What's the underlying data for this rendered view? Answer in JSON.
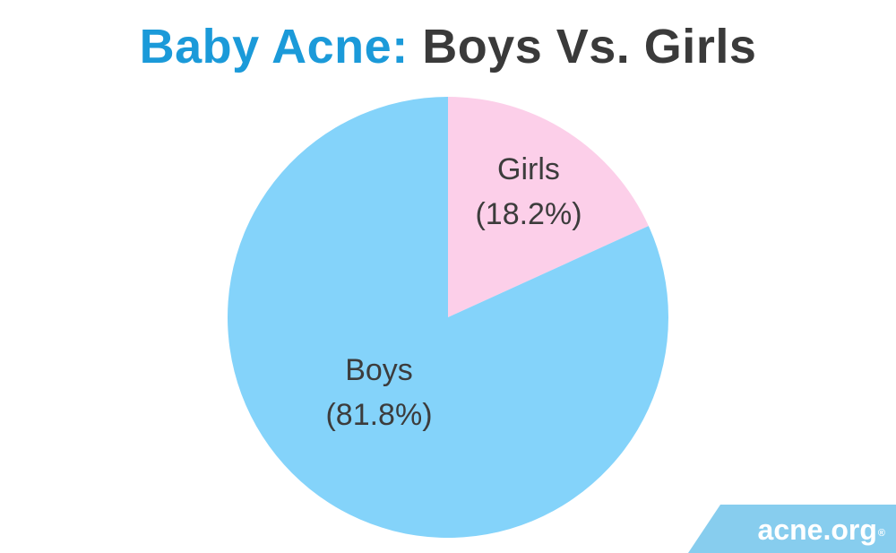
{
  "title": {
    "accent": "Baby Acne:",
    "main": "Boys Vs. Girls"
  },
  "chart_data": {
    "type": "pie",
    "title": "Baby Acne: Boys Vs. Girls",
    "slices": [
      {
        "name": "Girls",
        "value": 18.2,
        "label": "(18.2%)",
        "color": "#fccfe9"
      },
      {
        "name": "Boys",
        "value": 81.8,
        "label": "(81.8%)",
        "color": "#84d3fa"
      }
    ],
    "start": "12 o'clock",
    "direction": "clockwise"
  },
  "logo": {
    "text": "acne.org",
    "mark": "®",
    "color": "#87cdee"
  },
  "colors": {
    "accent": "#1b9ad9",
    "title_text": "#3a3a3a",
    "label_text": "#3c3c3c"
  }
}
